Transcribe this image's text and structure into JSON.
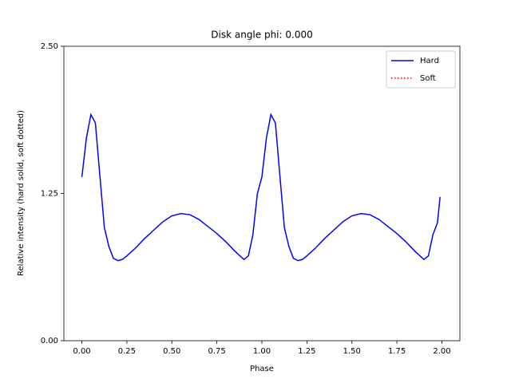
{
  "chart_data": {
    "type": "line",
    "title": "Disk angle phi: 0.000",
    "xlabel": "Phase",
    "ylabel": "Relative intensity (hard solid, soft dotted)",
    "x": [
      0,
      0.025,
      0.05,
      0.075,
      0.1,
      0.125,
      0.15,
      0.175,
      0.2,
      0.225,
      0.25,
      0.3,
      0.35,
      0.4,
      0.45,
      0.5,
      0.55,
      0.6,
      0.65,
      0.7,
      0.75,
      0.8,
      0.85,
      0.9,
      0.925,
      0.95,
      0.975,
      1.0,
      1.025,
      1.05,
      1.075,
      1.1,
      1.125,
      1.15,
      1.175,
      1.2,
      1.225,
      1.25,
      1.3,
      1.35,
      1.4,
      1.45,
      1.5,
      1.55,
      1.6,
      1.65,
      1.7,
      1.75,
      1.8,
      1.85,
      1.9,
      1.925,
      1.95,
      1.975,
      1.99
    ],
    "series": [
      {
        "name": "Hard",
        "color": "#0000ff",
        "style": "solid",
        "values": [
          1.39,
          1.72,
          1.92,
          1.85,
          1.4,
          0.96,
          0.8,
          0.7,
          0.68,
          0.69,
          0.72,
          0.79,
          0.87,
          0.94,
          1.01,
          1.06,
          1.08,
          1.07,
          1.03,
          0.97,
          0.91,
          0.84,
          0.76,
          0.69,
          0.72,
          0.9,
          1.25,
          1.39,
          1.72,
          1.92,
          1.85,
          1.4,
          0.96,
          0.8,
          0.7,
          0.68,
          0.69,
          0.72,
          0.79,
          0.87,
          0.94,
          1.01,
          1.06,
          1.08,
          1.07,
          1.03,
          0.97,
          0.91,
          0.84,
          0.76,
          0.69,
          0.72,
          0.9,
          1.0,
          1.22
        ]
      },
      {
        "name": "Soft",
        "color": "#ff0000",
        "style": "dotted",
        "values": [
          null,
          null,
          null,
          null,
          null,
          null,
          null,
          null,
          null,
          null,
          null,
          null,
          null,
          null,
          null,
          null,
          null,
          null,
          null,
          null,
          null,
          null,
          null,
          null,
          null,
          null,
          null,
          null,
          null,
          null,
          null,
          null,
          null,
          null,
          null,
          null,
          null,
          null,
          null,
          null,
          null,
          null,
          null,
          null,
          null,
          null,
          null,
          null,
          null,
          null,
          null,
          null,
          null,
          null,
          null
        ]
      }
    ],
    "xlim": [
      -0.1,
      2.1
    ],
    "xticks": [
      {
        "value": 0,
        "label": "0.00"
      },
      {
        "value": 0.25,
        "label": "0.25"
      },
      {
        "value": 0.5,
        "label": "0.50"
      },
      {
        "value": 0.75,
        "label": "0.75"
      },
      {
        "value": 1,
        "label": "1.00"
      },
      {
        "value": 1.25,
        "label": "1.25"
      },
      {
        "value": 1.5,
        "label": "1.50"
      },
      {
        "value": 1.75,
        "label": "1.75"
      },
      {
        "value": 2,
        "label": "2.00"
      }
    ],
    "ylim": [
      0,
      2.5
    ],
    "yticks": [
      {
        "value": 0,
        "label": "0.00"
      },
      {
        "value": 1.25,
        "label": "1.25"
      },
      {
        "value": 2.5,
        "label": "2.50"
      }
    ],
    "legend": "upper right"
  }
}
